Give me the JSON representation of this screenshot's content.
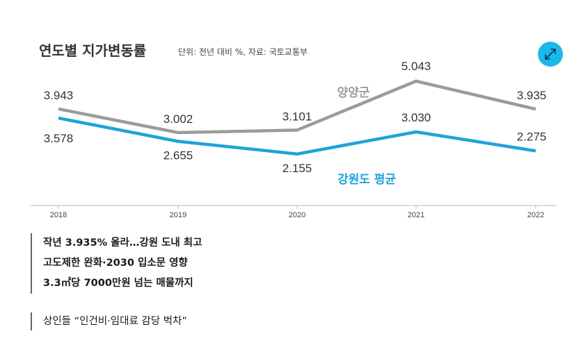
{
  "chart_data": {
    "type": "line",
    "title": "연도별 지가변동률",
    "source": "단위: 전년 대비 %, 자료: 국토교통부",
    "categories": [
      "2018",
      "2019",
      "2020",
      "2021",
      "2022"
    ],
    "series": [
      {
        "name": "양양군",
        "color": "#9b9b9b",
        "values": [
          3.943,
          3.002,
          3.101,
          5.043,
          3.935
        ],
        "labels": [
          "3.943",
          "3.002",
          "3.101",
          "5.043",
          "3.935"
        ]
      },
      {
        "name": "강원도 평균",
        "color": "#1ea3d9",
        "values": [
          3.578,
          2.655,
          2.155,
          3.03,
          2.275
        ],
        "labels": [
          "3.578",
          "2.655",
          "2.155",
          "3.030",
          "2.275"
        ]
      }
    ],
    "grid": false,
    "legend": "inline labels"
  },
  "expand_button": {
    "icon": "expand-arrows-icon",
    "color": "#1ab8e8"
  },
  "article": {
    "headlines": [
      "작년 3.935% 올라…강원 도내 최고",
      "고도제한 완화·2030 입소문 영향",
      "3.3㎡당 7000만원 넘는 매물까지"
    ],
    "subhead": "상인들 “인건비·임대료 감당 벅차”"
  }
}
